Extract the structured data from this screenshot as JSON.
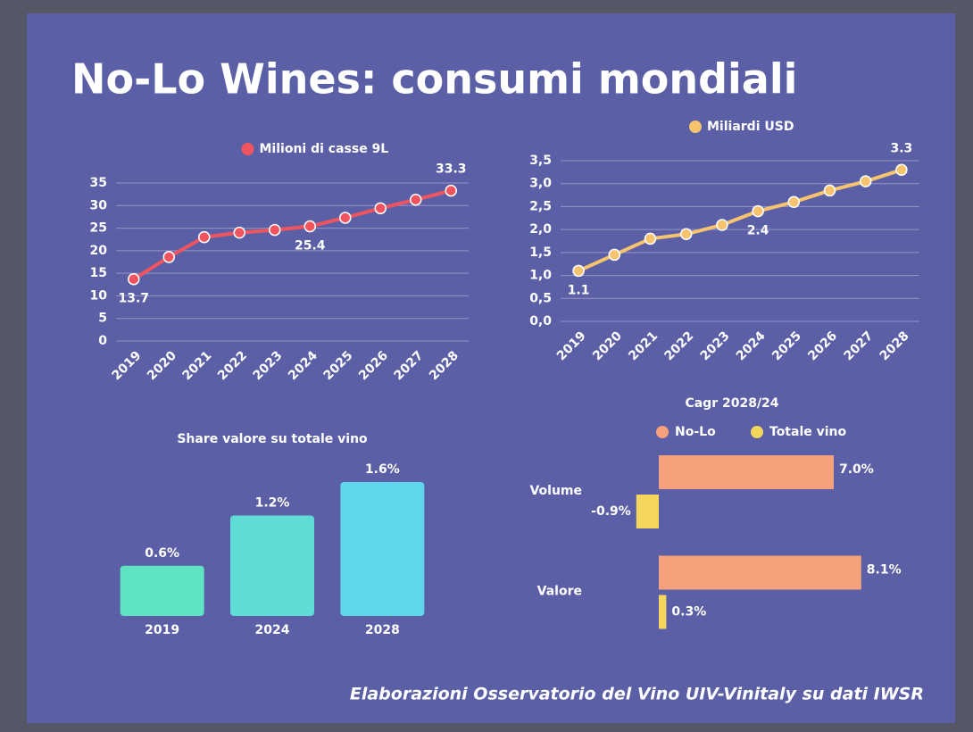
{
  "title": "No-Lo Wines: consumi mondiali",
  "source": "Elaborazioni Osservatorio del Vino UIV-Vinitaly su dati IWSR",
  "chart_data": [
    {
      "type": "line",
      "categories": [
        "2019",
        "2020",
        "2021",
        "2022",
        "2023",
        "2024",
        "2025",
        "2026",
        "2027",
        "2028"
      ],
      "series": [
        {
          "name": "Milioni di casse 9L",
          "color": "#f0555f",
          "values": [
            13.7,
            18.6,
            23.0,
            24.0,
            24.6,
            25.4,
            27.3,
            29.4,
            31.3,
            33.3
          ],
          "value_labels": [
            "13.7",
            null,
            null,
            null,
            null,
            "25.4",
            null,
            null,
            null,
            "33.3"
          ]
        }
      ],
      "ylim": [
        0,
        35
      ],
      "yticks": [
        0,
        5,
        10,
        15,
        20,
        25,
        30,
        35
      ],
      "grid": true
    },
    {
      "type": "line",
      "categories": [
        "2019",
        "2020",
        "2021",
        "2022",
        "2023",
        "2024",
        "2025",
        "2026",
        "2027",
        "2028"
      ],
      "series": [
        {
          "name": "Miliardi USD",
          "color": "#f7c36f",
          "values": [
            1.1,
            1.45,
            1.8,
            1.9,
            2.1,
            2.4,
            2.6,
            2.85,
            3.05,
            3.3
          ],
          "value_labels": [
            "1.1",
            null,
            null,
            null,
            null,
            "2.4",
            null,
            null,
            null,
            "3.3"
          ]
        }
      ],
      "ylim": [
        0,
        3.5
      ],
      "yticks": [
        {
          "value": 0,
          "label": "0,0"
        },
        {
          "value": 0.5,
          "label": "0,5"
        },
        {
          "value": 1,
          "label": "1,0"
        },
        {
          "value": 1.5,
          "label": "1,5"
        },
        {
          "value": 2,
          "label": "2,0"
        },
        {
          "value": 2.5,
          "label": "2,5"
        },
        {
          "value": 3,
          "label": "3,0"
        },
        {
          "value": 3.5,
          "label": "3,5"
        }
      ],
      "grid": true
    },
    {
      "type": "bar",
      "title": "Share valore su totale vino",
      "categories": [
        "2019",
        "2024",
        "2028"
      ],
      "values": [
        0.6,
        1.2,
        1.6
      ],
      "value_labels": [
        "0.6%",
        "1.2%",
        "1.6%"
      ],
      "colors": [
        "#5fe3c3",
        "#5fdcd6",
        "#5fd6ea"
      ]
    },
    {
      "type": "hbar",
      "title": "Cagr 2028/24",
      "categories": [
        "Volume",
        "Valore"
      ],
      "series": [
        {
          "name": "No-Lo",
          "color": "#f5a17c",
          "values": [
            7.0,
            8.1
          ],
          "value_labels": [
            "7.0%",
            "8.1%"
          ]
        },
        {
          "name": "Totale vino",
          "color": "#f4d65c",
          "values": [
            -0.9,
            0.3
          ],
          "value_labels": [
            "-0.9%",
            "0.3%"
          ]
        }
      ]
    }
  ]
}
